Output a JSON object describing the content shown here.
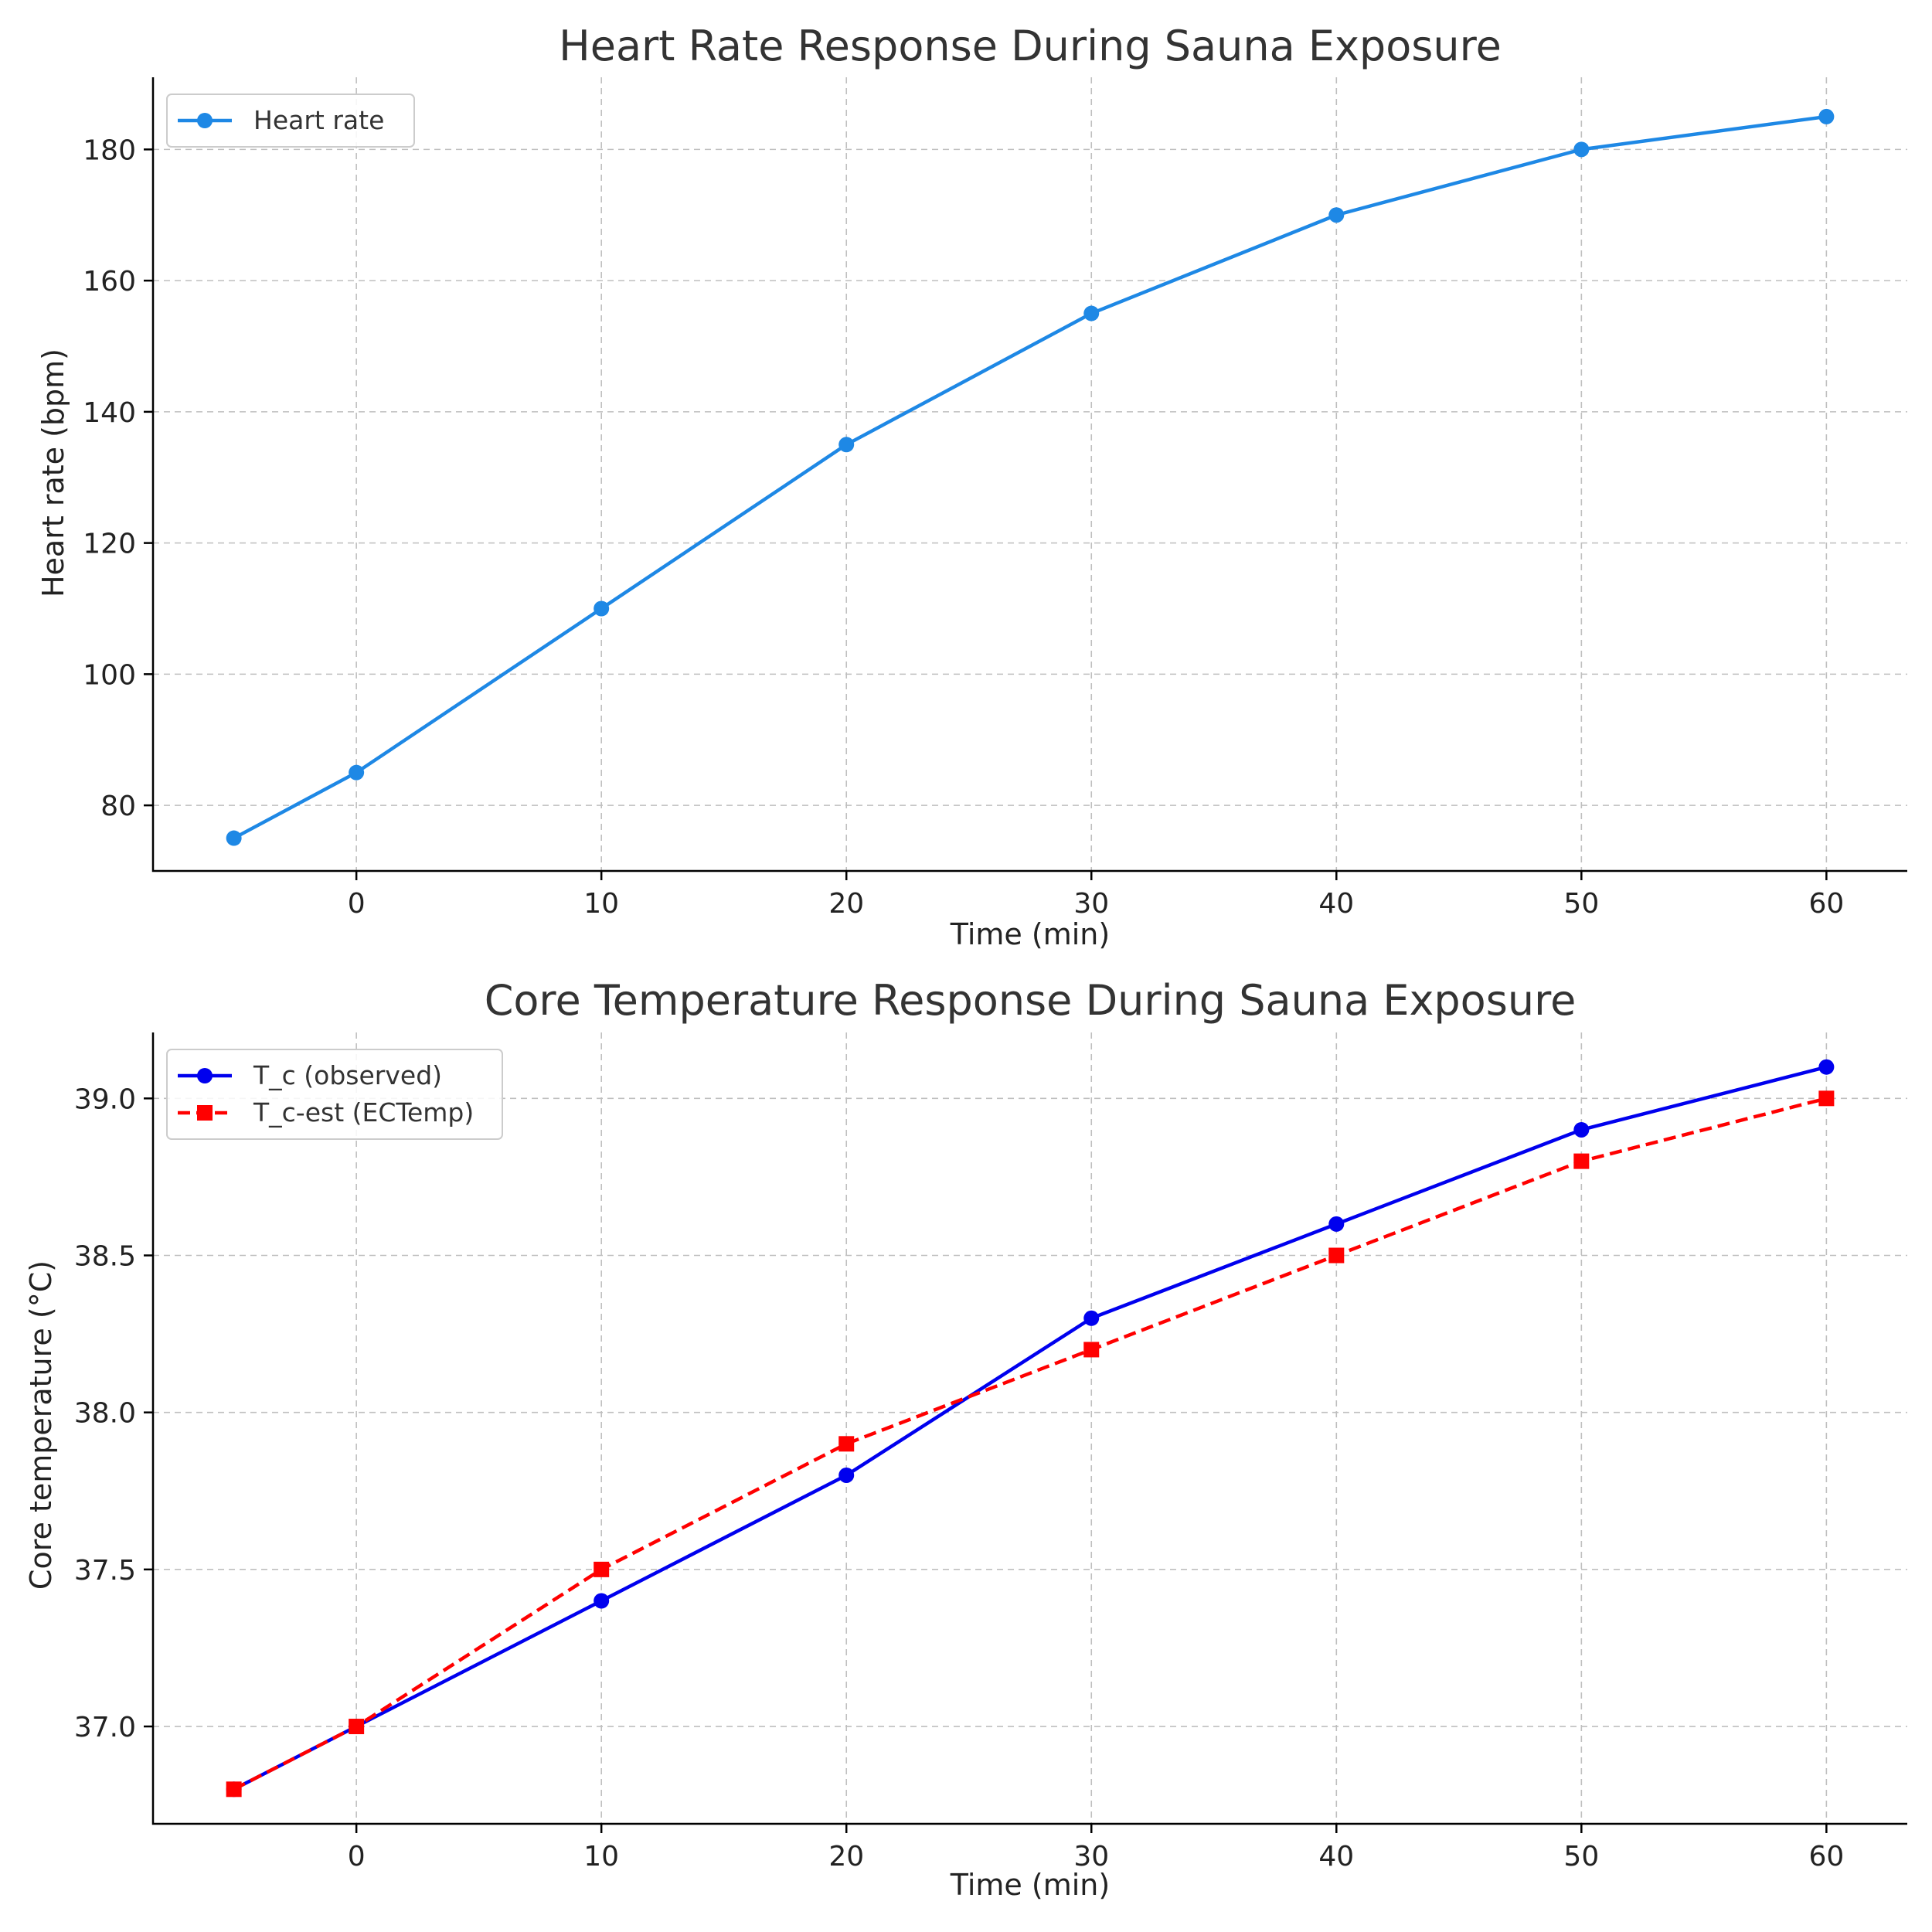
{
  "chart_data": [
    {
      "type": "line",
      "title": "Heart Rate Response During Sauna Exposure",
      "xlabel": "Time (min)",
      "ylabel": "Heart rate (bpm)",
      "xlim": [
        -8.3,
        63.3
      ],
      "ylim": [
        70,
        191
      ],
      "xticks": [
        0,
        10,
        20,
        30,
        40,
        50,
        60
      ],
      "yticks": [
        80,
        100,
        120,
        140,
        160,
        180
      ],
      "tick_decimals": 0,
      "grid": true,
      "legend_position": "upper-left",
      "x": [
        -5,
        0,
        10,
        20,
        30,
        40,
        50,
        60
      ],
      "series": [
        {
          "name": "Heart rate",
          "values": [
            75,
            85,
            110,
            135,
            155,
            170,
            180,
            185
          ],
          "color": "#1e88e5",
          "marker": "circle",
          "dashed": false
        }
      ]
    },
    {
      "type": "line",
      "title": "Core Temperature Response During Sauna Exposure",
      "xlabel": "Time (min)",
      "ylabel": "Core temperature (°C)",
      "xlim": [
        -8.3,
        63.3
      ],
      "ylim": [
        36.69,
        39.21
      ],
      "xticks": [
        0,
        10,
        20,
        30,
        40,
        50,
        60
      ],
      "yticks": [
        37.0,
        37.5,
        38.0,
        38.5,
        39.0
      ],
      "tick_decimals": 1,
      "grid": true,
      "legend_position": "upper-left",
      "x": [
        -5,
        0,
        10,
        20,
        30,
        40,
        50,
        60
      ],
      "series": [
        {
          "name": "T_c (observed)",
          "values": [
            36.8,
            37.0,
            37.4,
            37.8,
            38.3,
            38.6,
            38.9,
            39.1
          ],
          "color": "#0000ee",
          "marker": "circle",
          "dashed": false
        },
        {
          "name": "T_c-est (ECTemp)",
          "values": [
            36.8,
            37.0,
            37.5,
            37.9,
            38.2,
            38.5,
            38.8,
            39.0
          ],
          "color": "#ff0000",
          "marker": "square",
          "dashed": true
        }
      ]
    }
  ]
}
